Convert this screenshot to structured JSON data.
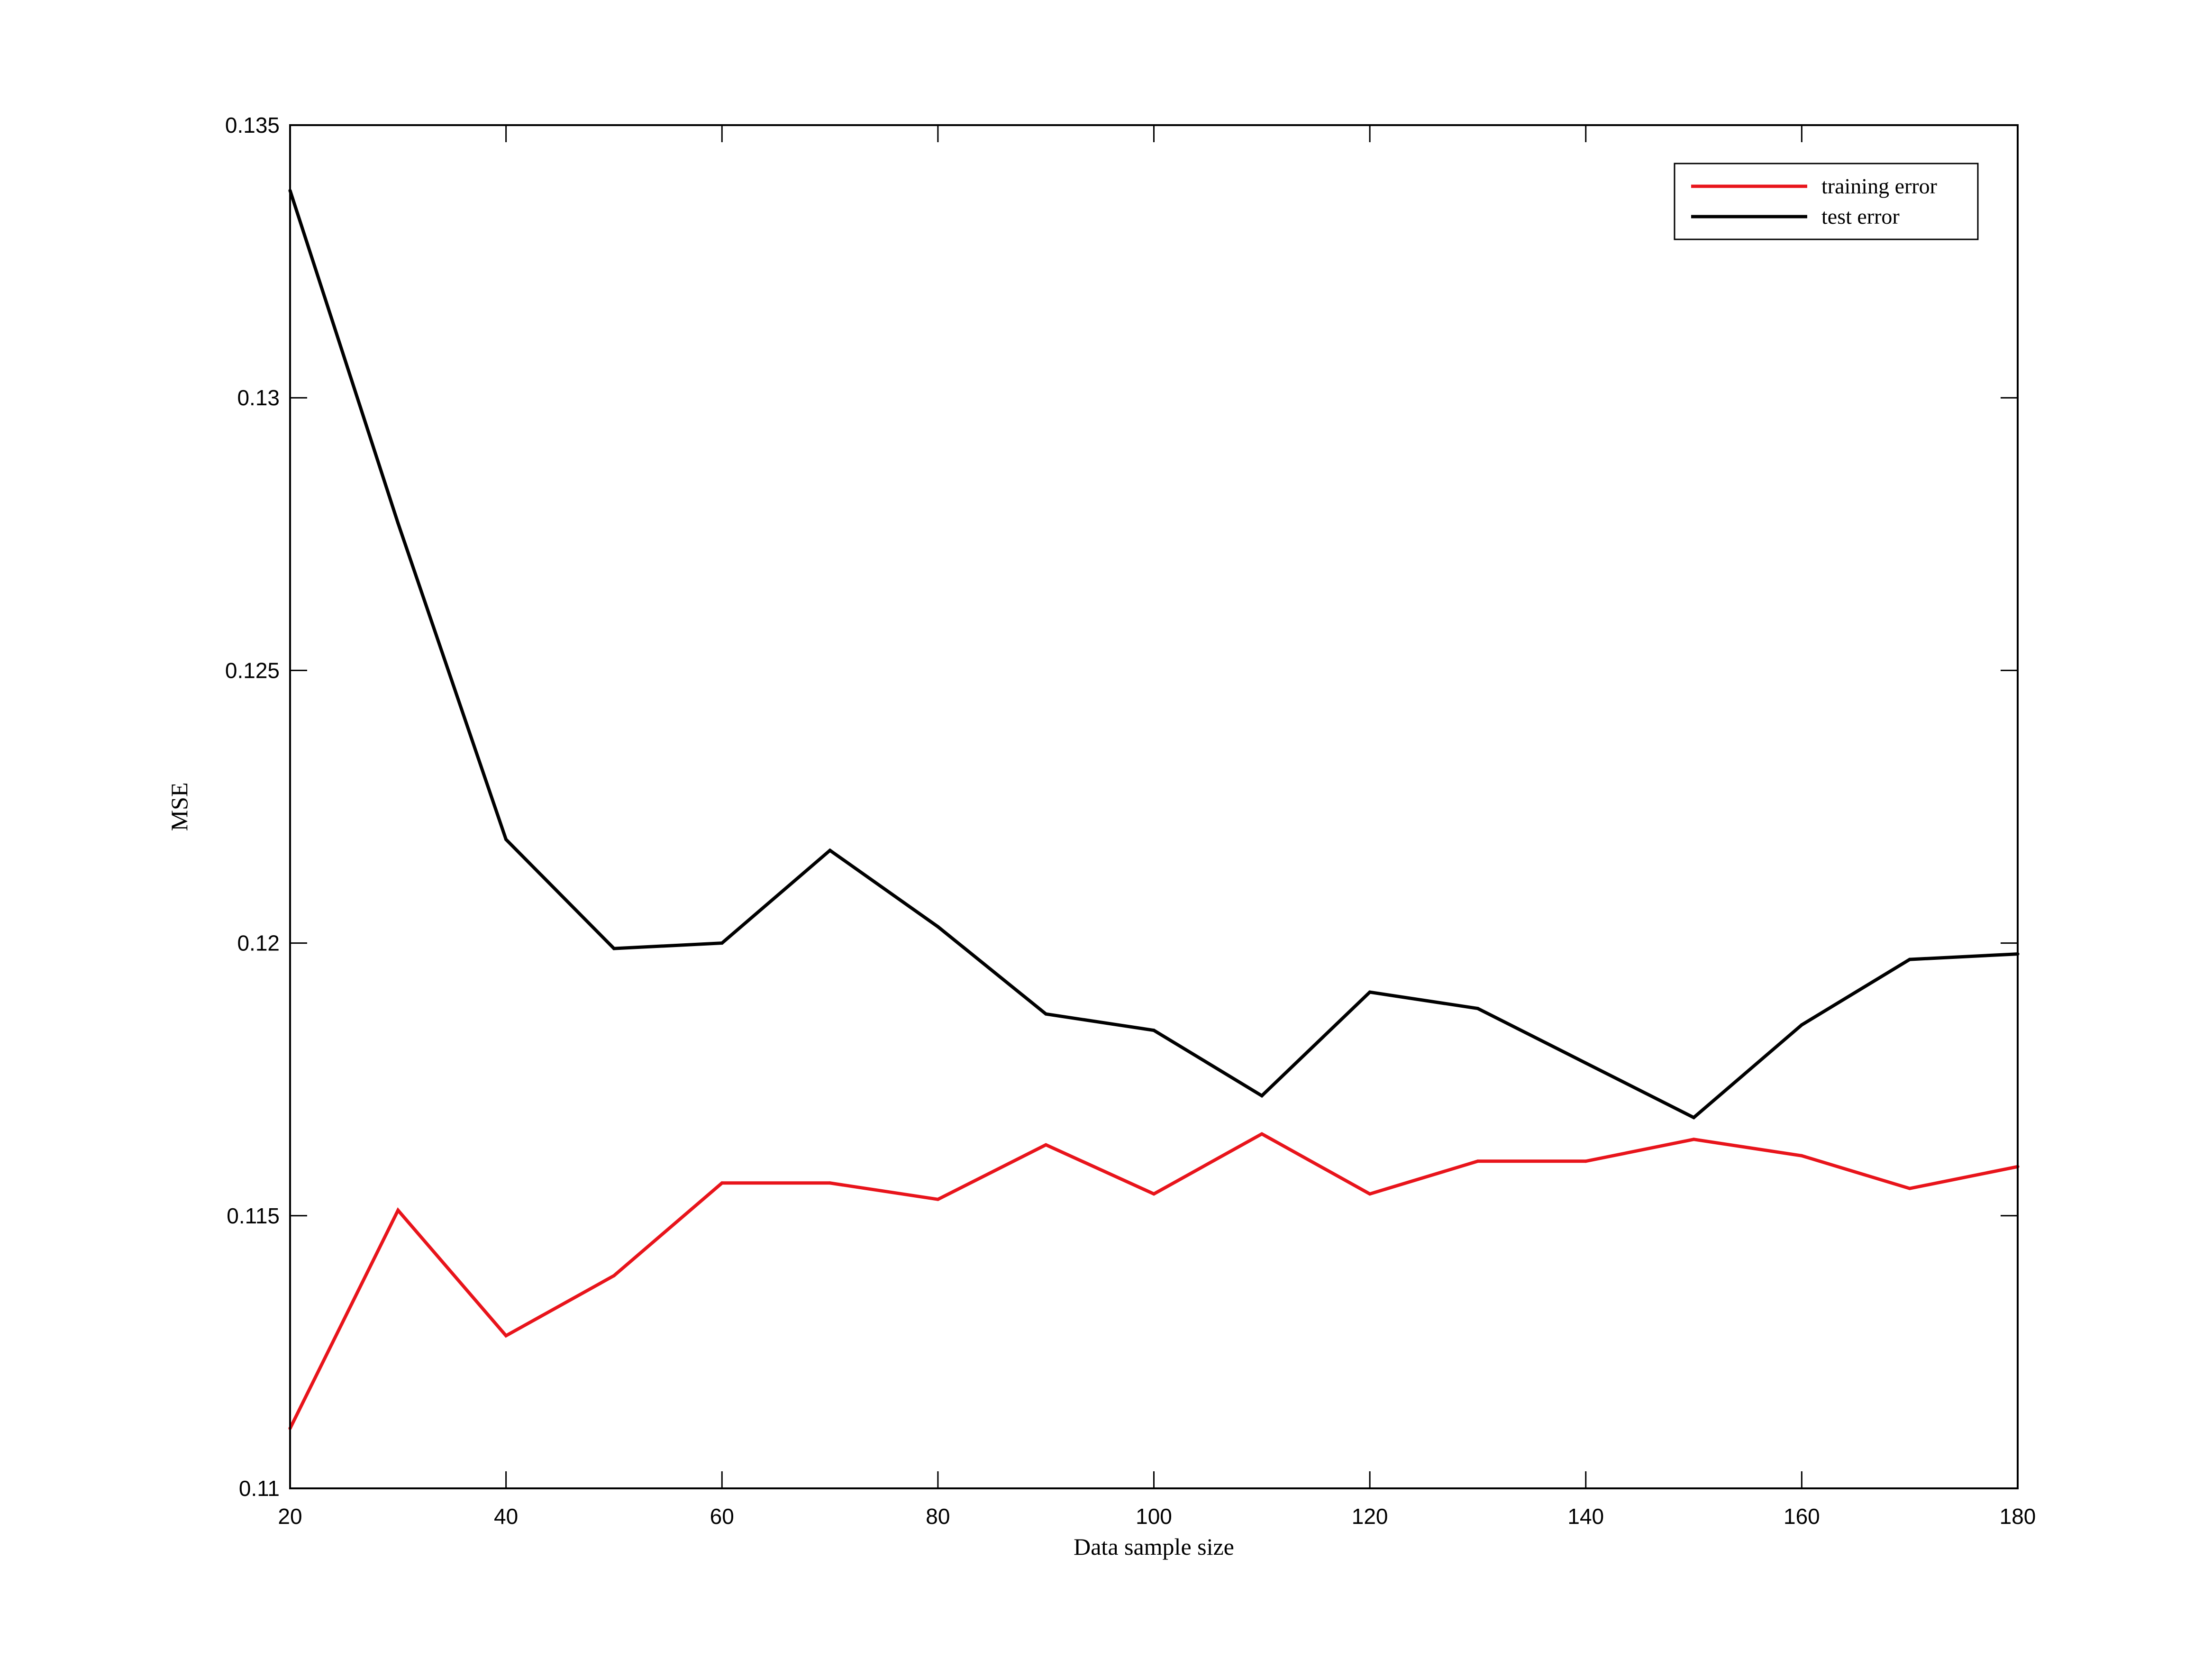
{
  "chart_data": {
    "type": "line",
    "title": "",
    "xlabel": "Data sample size",
    "ylabel": "MSE",
    "xlim": [
      20,
      180
    ],
    "ylim": [
      0.11,
      0.135
    ],
    "x_ticks": [
      20,
      40,
      60,
      80,
      100,
      120,
      140,
      160,
      180
    ],
    "x_tick_labels": [
      "20",
      "40",
      "60",
      "80",
      "100",
      "120",
      "140",
      "160",
      "180"
    ],
    "y_ticks": [
      0.11,
      0.115,
      0.12,
      0.125,
      0.13,
      0.135
    ],
    "y_tick_labels": [
      "0.11",
      "0.115",
      "0.12",
      "0.125",
      "0.13",
      "0.135"
    ],
    "grid": false,
    "legend_position": "top-right",
    "x": [
      20,
      30,
      40,
      50,
      60,
      70,
      80,
      90,
      100,
      110,
      120,
      130,
      140,
      150,
      160,
      170,
      180
    ],
    "series": [
      {
        "name": "training error",
        "color": "#e8141b",
        "values": [
          0.1111,
          0.1151,
          0.1128,
          0.1139,
          0.1156,
          0.1156,
          0.1153,
          0.1163,
          0.1154,
          0.1165,
          0.1154,
          0.116,
          0.116,
          0.1164,
          0.1161,
          0.1155,
          0.1159
        ]
      },
      {
        "name": "test error",
        "color": "#000000",
        "values": [
          0.1338,
          0.1277,
          0.1219,
          0.1199,
          0.12,
          0.1217,
          0.1203,
          0.1187,
          0.1184,
          0.1172,
          0.1191,
          0.1188,
          0.1178,
          0.1168,
          0.1185,
          0.1197,
          0.1198
        ]
      }
    ]
  }
}
